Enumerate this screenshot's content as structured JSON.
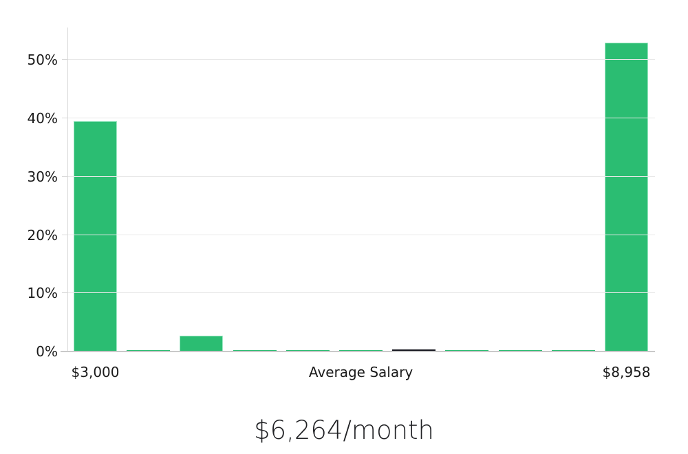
{
  "chart_data": {
    "type": "bar",
    "title": "$6,264/month",
    "values_pct": [
      39.6,
      0.2,
      2.7,
      0.2,
      0.2,
      0.2,
      0.3,
      0.2,
      0.2,
      0.2,
      53.0
    ],
    "average_marker_bar_index": 6,
    "x_tick_labels": [
      {
        "bar_index": 0,
        "label": "$3,000"
      },
      {
        "bar_index": 5,
        "label": "Average Salary"
      },
      {
        "bar_index": 10,
        "label": "$8,958"
      }
    ],
    "y_ticks": [
      {
        "value": 0,
        "label": "0%"
      },
      {
        "value": 10,
        "label": "10%"
      },
      {
        "value": 20,
        "label": "20%"
      },
      {
        "value": 30,
        "label": "30%"
      },
      {
        "value": 40,
        "label": "40%"
      },
      {
        "value": 50,
        "label": "50%"
      }
    ],
    "ylim": [
      0,
      55.6
    ],
    "grid": true,
    "legend": false,
    "colors": {
      "bar_fill": "#2bbd72",
      "bar_border": "#9fe8c5",
      "average_marker": "#15161e",
      "gridline": "#e8e8e8",
      "axis_line": "#d9d9d9",
      "baseline": "#c9c9c9",
      "label_text": "#1a1a1a",
      "title_text": "#202124"
    }
  }
}
